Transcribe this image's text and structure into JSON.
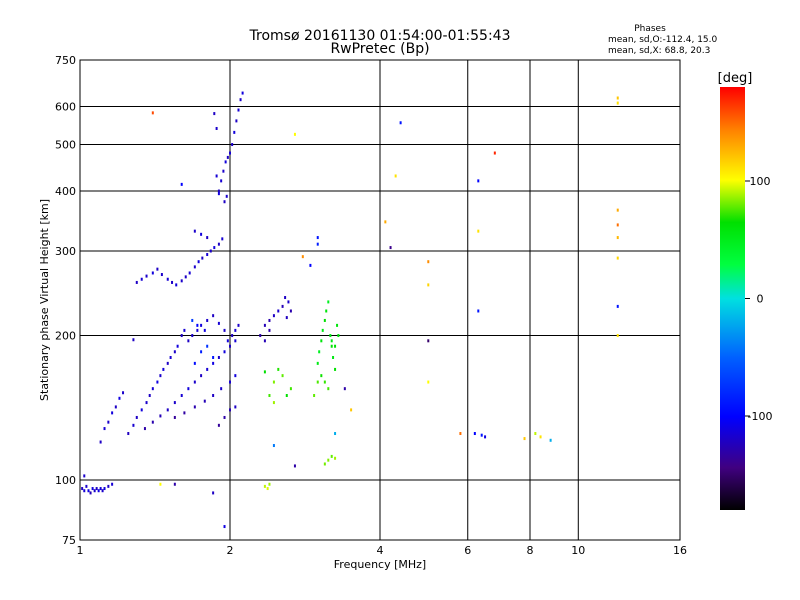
{
  "header": {
    "title_line1": "Tromsø 20161130 01:54:00-01:55:43",
    "title_line2": "RwPretec (Bp)"
  },
  "phase_box": {
    "heading": "Phases",
    "line1": "mean, sd,O:-112.4, 15.0",
    "line2": "mean, sd,X:  68.8, 20.3"
  },
  "colorbar": {
    "label": "[deg]",
    "ticks": [
      {
        "value": 100,
        "label": "100"
      },
      {
        "value": 0,
        "label": "0"
      },
      {
        "value": -100,
        "label": "-100"
      }
    ],
    "range": [
      -180,
      180
    ]
  },
  "chart_data": {
    "type": "scatter",
    "xlabel": "Frequency [MHz]",
    "ylabel": "Stationary phase Virtual Height [km]",
    "xscale": "log",
    "yscale": "log",
    "xlim": [
      1,
      16
    ],
    "ylim": [
      75,
      750
    ],
    "xticks": [
      {
        "value": 1,
        "label": "1"
      },
      {
        "value": 2,
        "label": "2"
      },
      {
        "value": 4,
        "label": "4"
      },
      {
        "value": 6,
        "label": "6"
      },
      {
        "value": 8,
        "label": "8"
      },
      {
        "value": 10,
        "label": "10"
      },
      {
        "value": 16,
        "label": "16"
      }
    ],
    "yticks": [
      {
        "value": 75,
        "label": "75"
      },
      {
        "value": 100,
        "label": "100"
      },
      {
        "value": 200,
        "label": "200"
      },
      {
        "value": 300,
        "label": "300"
      },
      {
        "value": 400,
        "label": "400"
      },
      {
        "value": 500,
        "label": "500"
      },
      {
        "value": 600,
        "label": "600"
      },
      {
        "value": 750,
        "label": "750"
      }
    ],
    "grid": true,
    "color_encoding": "phase [deg]",
    "points": [
      {
        "x": 1.01,
        "y": 96,
        "p": -120
      },
      {
        "x": 1.02,
        "y": 95,
        "p": -115
      },
      {
        "x": 1.03,
        "y": 97,
        "p": -118
      },
      {
        "x": 1.04,
        "y": 95,
        "p": -110
      },
      {
        "x": 1.05,
        "y": 94,
        "p": -125
      },
      {
        "x": 1.06,
        "y": 96,
        "p": -112
      },
      {
        "x": 1.07,
        "y": 95,
        "p": -118
      },
      {
        "x": 1.08,
        "y": 96,
        "p": -120
      },
      {
        "x": 1.09,
        "y": 95,
        "p": -110
      },
      {
        "x": 1.1,
        "y": 96,
        "p": -115
      },
      {
        "x": 1.11,
        "y": 95,
        "p": -118
      },
      {
        "x": 1.12,
        "y": 96,
        "p": -112
      },
      {
        "x": 1.14,
        "y": 97,
        "p": -120
      },
      {
        "x": 1.16,
        "y": 98,
        "p": -115
      },
      {
        "x": 1.02,
        "y": 102,
        "p": -118
      },
      {
        "x": 1.1,
        "y": 120,
        "p": -120
      },
      {
        "x": 1.12,
        "y": 128,
        "p": -115
      },
      {
        "x": 1.14,
        "y": 132,
        "p": -118
      },
      {
        "x": 1.16,
        "y": 138,
        "p": -112
      },
      {
        "x": 1.18,
        "y": 142,
        "p": -120
      },
      {
        "x": 1.2,
        "y": 148,
        "p": -110
      },
      {
        "x": 1.22,
        "y": 152,
        "p": -118
      },
      {
        "x": 1.25,
        "y": 125,
        "p": -122
      },
      {
        "x": 1.28,
        "y": 130,
        "p": -116
      },
      {
        "x": 1.3,
        "y": 135,
        "p": -120
      },
      {
        "x": 1.33,
        "y": 140,
        "p": -112
      },
      {
        "x": 1.36,
        "y": 145,
        "p": -118
      },
      {
        "x": 1.38,
        "y": 150,
        "p": -120
      },
      {
        "x": 1.4,
        "y": 155,
        "p": -115
      },
      {
        "x": 1.43,
        "y": 160,
        "p": -110
      },
      {
        "x": 1.45,
        "y": 165,
        "p": -118
      },
      {
        "x": 1.47,
        "y": 170,
        "p": -112
      },
      {
        "x": 1.5,
        "y": 175,
        "p": -120
      },
      {
        "x": 1.52,
        "y": 180,
        "p": -116
      },
      {
        "x": 1.55,
        "y": 185,
        "p": -118
      },
      {
        "x": 1.57,
        "y": 190,
        "p": -112
      },
      {
        "x": 1.6,
        "y": 200,
        "p": -120
      },
      {
        "x": 1.62,
        "y": 205,
        "p": -115
      },
      {
        "x": 1.35,
        "y": 128,
        "p": -130
      },
      {
        "x": 1.4,
        "y": 132,
        "p": -128
      },
      {
        "x": 1.45,
        "y": 136,
        "p": -125
      },
      {
        "x": 1.5,
        "y": 140,
        "p": -120
      },
      {
        "x": 1.55,
        "y": 145,
        "p": -118
      },
      {
        "x": 1.6,
        "y": 150,
        "p": -115
      },
      {
        "x": 1.65,
        "y": 155,
        "p": -112
      },
      {
        "x": 1.7,
        "y": 160,
        "p": -118
      },
      {
        "x": 1.75,
        "y": 165,
        "p": -120
      },
      {
        "x": 1.8,
        "y": 170,
        "p": -115
      },
      {
        "x": 1.85,
        "y": 175,
        "p": -110
      },
      {
        "x": 1.9,
        "y": 180,
        "p": -118
      },
      {
        "x": 1.95,
        "y": 185,
        "p": -112
      },
      {
        "x": 2.0,
        "y": 190,
        "p": -120
      },
      {
        "x": 2.05,
        "y": 195,
        "p": -115
      },
      {
        "x": 1.55,
        "y": 135,
        "p": -135
      },
      {
        "x": 1.62,
        "y": 138,
        "p": -132
      },
      {
        "x": 1.7,
        "y": 142,
        "p": -128
      },
      {
        "x": 1.78,
        "y": 146,
        "p": -125
      },
      {
        "x": 1.85,
        "y": 150,
        "p": -120
      },
      {
        "x": 1.92,
        "y": 155,
        "p": -118
      },
      {
        "x": 2.0,
        "y": 160,
        "p": -115
      },
      {
        "x": 2.05,
        "y": 165,
        "p": -112
      },
      {
        "x": 1.7,
        "y": 175,
        "p": -95
      },
      {
        "x": 1.75,
        "y": 185,
        "p": -85
      },
      {
        "x": 1.8,
        "y": 190,
        "p": -75
      },
      {
        "x": 1.85,
        "y": 180,
        "p": -90
      },
      {
        "x": 1.68,
        "y": 215,
        "p": -70
      },
      {
        "x": 1.72,
        "y": 210,
        "p": -100
      },
      {
        "x": 1.78,
        "y": 205,
        "p": -110
      },
      {
        "x": 1.65,
        "y": 195,
        "p": -120
      },
      {
        "x": 1.68,
        "y": 200,
        "p": -118
      },
      {
        "x": 1.72,
        "y": 205,
        "p": -115
      },
      {
        "x": 1.75,
        "y": 210,
        "p": -112
      },
      {
        "x": 1.8,
        "y": 215,
        "p": -118
      },
      {
        "x": 1.85,
        "y": 220,
        "p": -120
      },
      {
        "x": 1.9,
        "y": 212,
        "p": -115
      },
      {
        "x": 1.95,
        "y": 205,
        "p": -118
      },
      {
        "x": 1.98,
        "y": 195,
        "p": -112
      },
      {
        "x": 2.02,
        "y": 200,
        "p": -120
      },
      {
        "x": 2.05,
        "y": 205,
        "p": -115
      },
      {
        "x": 2.08,
        "y": 210,
        "p": -118
      },
      {
        "x": 1.95,
        "y": 135,
        "p": -130
      },
      {
        "x": 2.0,
        "y": 140,
        "p": -125
      },
      {
        "x": 2.05,
        "y": 142,
        "p": -120
      },
      {
        "x": 1.9,
        "y": 130,
        "p": -135
      },
      {
        "x": 1.3,
        "y": 258,
        "p": -120
      },
      {
        "x": 1.33,
        "y": 262,
        "p": -115
      },
      {
        "x": 1.36,
        "y": 266,
        "p": -118
      },
      {
        "x": 1.4,
        "y": 270,
        "p": -112
      },
      {
        "x": 1.43,
        "y": 275,
        "p": -120
      },
      {
        "x": 1.46,
        "y": 268,
        "p": -118
      },
      {
        "x": 1.5,
        "y": 262,
        "p": -115
      },
      {
        "x": 1.53,
        "y": 258,
        "p": -120
      },
      {
        "x": 1.56,
        "y": 255,
        "p": -112
      },
      {
        "x": 1.6,
        "y": 260,
        "p": -118
      },
      {
        "x": 1.63,
        "y": 265,
        "p": -120
      },
      {
        "x": 1.66,
        "y": 270,
        "p": -115
      },
      {
        "x": 1.7,
        "y": 278,
        "p": -118
      },
      {
        "x": 1.73,
        "y": 285,
        "p": -112
      },
      {
        "x": 1.76,
        "y": 290,
        "p": -120
      },
      {
        "x": 1.8,
        "y": 295,
        "p": -115
      },
      {
        "x": 1.83,
        "y": 300,
        "p": -118
      },
      {
        "x": 1.86,
        "y": 305,
        "p": -112
      },
      {
        "x": 1.9,
        "y": 310,
        "p": -120
      },
      {
        "x": 1.93,
        "y": 318,
        "p": -115
      },
      {
        "x": 1.7,
        "y": 330,
        "p": -118
      },
      {
        "x": 1.75,
        "y": 325,
        "p": -112
      },
      {
        "x": 1.8,
        "y": 320,
        "p": -120
      },
      {
        "x": 1.9,
        "y": 400,
        "p": -120
      },
      {
        "x": 1.92,
        "y": 420,
        "p": -115
      },
      {
        "x": 1.94,
        "y": 440,
        "p": -118
      },
      {
        "x": 1.96,
        "y": 460,
        "p": -112
      },
      {
        "x": 1.98,
        "y": 470,
        "p": -120
      },
      {
        "x": 2.0,
        "y": 480,
        "p": -115
      },
      {
        "x": 2.02,
        "y": 500,
        "p": -118
      },
      {
        "x": 2.04,
        "y": 530,
        "p": -112
      },
      {
        "x": 2.06,
        "y": 560,
        "p": -120
      },
      {
        "x": 2.08,
        "y": 590,
        "p": -115
      },
      {
        "x": 2.1,
        "y": 620,
        "p": -118
      },
      {
        "x": 2.12,
        "y": 640,
        "p": -112
      },
      {
        "x": 1.95,
        "y": 380,
        "p": -120
      },
      {
        "x": 1.97,
        "y": 390,
        "p": -118
      },
      {
        "x": 1.88,
        "y": 430,
        "p": -115
      },
      {
        "x": 1.86,
        "y": 580,
        "p": -120
      },
      {
        "x": 1.88,
        "y": 540,
        "p": -118
      },
      {
        "x": 1.9,
        "y": 395,
        "p": -112
      },
      {
        "x": 2.3,
        "y": 200,
        "p": -130
      },
      {
        "x": 2.35,
        "y": 210,
        "p": -125
      },
      {
        "x": 2.4,
        "y": 215,
        "p": -128
      },
      {
        "x": 2.45,
        "y": 220,
        "p": -120
      },
      {
        "x": 2.5,
        "y": 225,
        "p": -118
      },
      {
        "x": 2.55,
        "y": 230,
        "p": -125
      },
      {
        "x": 2.6,
        "y": 218,
        "p": -122
      },
      {
        "x": 2.65,
        "y": 225,
        "p": -128
      },
      {
        "x": 2.58,
        "y": 240,
        "p": -120
      },
      {
        "x": 2.62,
        "y": 235,
        "p": -118
      },
      {
        "x": 2.4,
        "y": 205,
        "p": -130
      },
      {
        "x": 2.35,
        "y": 195,
        "p": -125
      },
      {
        "x": 2.35,
        "y": 168,
        "p": 60
      },
      {
        "x": 2.4,
        "y": 150,
        "p": 70
      },
      {
        "x": 2.45,
        "y": 160,
        "p": 80
      },
      {
        "x": 2.5,
        "y": 170,
        "p": 65
      },
      {
        "x": 2.55,
        "y": 165,
        "p": 75
      },
      {
        "x": 2.6,
        "y": 150,
        "p": 60
      },
      {
        "x": 2.65,
        "y": 155,
        "p": 70
      },
      {
        "x": 2.45,
        "y": 145,
        "p": 85
      },
      {
        "x": 2.35,
        "y": 97,
        "p": 90
      },
      {
        "x": 2.38,
        "y": 96,
        "p": 95
      },
      {
        "x": 2.4,
        "y": 98,
        "p": 85
      },
      {
        "x": 3.0,
        "y": 175,
        "p": 50
      },
      {
        "x": 3.02,
        "y": 185,
        "p": 45
      },
      {
        "x": 3.05,
        "y": 195,
        "p": 55
      },
      {
        "x": 3.07,
        "y": 205,
        "p": 50
      },
      {
        "x": 3.1,
        "y": 215,
        "p": 60
      },
      {
        "x": 3.12,
        "y": 225,
        "p": 55
      },
      {
        "x": 3.15,
        "y": 235,
        "p": 45
      },
      {
        "x": 3.18,
        "y": 200,
        "p": 50
      },
      {
        "x": 3.2,
        "y": 190,
        "p": 58
      },
      {
        "x": 3.22,
        "y": 180,
        "p": 52
      },
      {
        "x": 3.25,
        "y": 170,
        "p": 60
      },
      {
        "x": 3.28,
        "y": 210,
        "p": 55
      },
      {
        "x": 3.05,
        "y": 165,
        "p": 62
      },
      {
        "x": 3.1,
        "y": 160,
        "p": 68
      },
      {
        "x": 3.15,
        "y": 155,
        "p": 70
      },
      {
        "x": 3.2,
        "y": 195,
        "p": 50
      },
      {
        "x": 2.95,
        "y": 150,
        "p": 75
      },
      {
        "x": 3.0,
        "y": 160,
        "p": 72
      },
      {
        "x": 3.3,
        "y": 200,
        "p": 55
      },
      {
        "x": 3.25,
        "y": 190,
        "p": 58
      },
      {
        "x": 3.15,
        "y": 110,
        "p": 80
      },
      {
        "x": 3.2,
        "y": 112,
        "p": 75
      },
      {
        "x": 3.25,
        "y": 111,
        "p": 85
      },
      {
        "x": 3.1,
        "y": 108,
        "p": 78
      },
      {
        "x": 3.0,
        "y": 320,
        "p": -90
      },
      {
        "x": 3.0,
        "y": 310,
        "p": -85
      },
      {
        "x": 3.25,
        "y": 125,
        "p": -20
      },
      {
        "x": 3.5,
        "y": 140,
        "p": 120
      },
      {
        "x": 3.4,
        "y": 155,
        "p": -130
      },
      {
        "x": 4.1,
        "y": 345,
        "p": 130
      },
      {
        "x": 4.2,
        "y": 305,
        "p": -140
      },
      {
        "x": 4.3,
        "y": 430,
        "p": 110
      },
      {
        "x": 4.4,
        "y": 555,
        "p": -90
      },
      {
        "x": 5.0,
        "y": 285,
        "p": 140
      },
      {
        "x": 5.0,
        "y": 255,
        "p": 115
      },
      {
        "x": 5.0,
        "y": 195,
        "p": -150
      },
      {
        "x": 5.0,
        "y": 160,
        "p": 100
      },
      {
        "x": 5.8,
        "y": 125,
        "p": 150
      },
      {
        "x": 6.2,
        "y": 125,
        "p": -100
      },
      {
        "x": 6.4,
        "y": 124,
        "p": -90
      },
      {
        "x": 6.5,
        "y": 123,
        "p": -110
      },
      {
        "x": 6.3,
        "y": 420,
        "p": -100
      },
      {
        "x": 6.3,
        "y": 330,
        "p": 110
      },
      {
        "x": 6.3,
        "y": 225,
        "p": -90
      },
      {
        "x": 6.8,
        "y": 480,
        "p": 170
      },
      {
        "x": 7.8,
        "y": 122,
        "p": 120
      },
      {
        "x": 8.2,
        "y": 125,
        "p": 90
      },
      {
        "x": 8.4,
        "y": 123,
        "p": 110
      },
      {
        "x": 8.8,
        "y": 121,
        "p": -20
      },
      {
        "x": 12.0,
        "y": 625,
        "p": 120
      },
      {
        "x": 12.0,
        "y": 610,
        "p": 110
      },
      {
        "x": 12.0,
        "y": 365,
        "p": 130
      },
      {
        "x": 12.0,
        "y": 340,
        "p": 150
      },
      {
        "x": 12.0,
        "y": 320,
        "p": 125
      },
      {
        "x": 12.0,
        "y": 290,
        "p": 115
      },
      {
        "x": 12.0,
        "y": 230,
        "p": -90
      },
      {
        "x": 12.0,
        "y": 200,
        "p": 110
      },
      {
        "x": 1.4,
        "y": 582,
        "p": 160
      },
      {
        "x": 2.7,
        "y": 525,
        "p": 100
      },
      {
        "x": 1.6,
        "y": 413,
        "p": -100
      },
      {
        "x": 1.28,
        "y": 196,
        "p": -120
      },
      {
        "x": 1.45,
        "y": 98,
        "p": 100
      },
      {
        "x": 1.55,
        "y": 98,
        "p": -130
      },
      {
        "x": 1.85,
        "y": 94,
        "p": -120
      },
      {
        "x": 1.95,
        "y": 80,
        "p": -110
      },
      {
        "x": 2.7,
        "y": 107,
        "p": -130
      },
      {
        "x": 2.45,
        "y": 118,
        "p": -40
      },
      {
        "x": 2.8,
        "y": 292,
        "p": 140
      },
      {
        "x": 2.9,
        "y": 280,
        "p": -100
      }
    ]
  }
}
